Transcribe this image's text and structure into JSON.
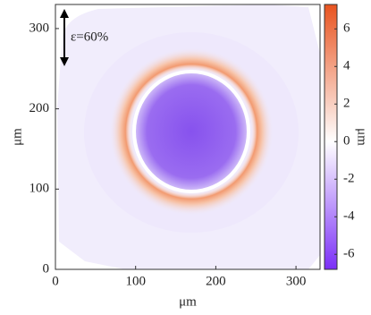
{
  "chart_data": {
    "type": "heatmap",
    "x_label": "μm",
    "y_label": "μm",
    "colorbar_label": "μm",
    "annotation": "ε=60%",
    "xlim": [
      0,
      330
    ],
    "ylim": [
      0,
      330
    ],
    "xticks": [
      0,
      100,
      200,
      300
    ],
    "yticks": [
      0,
      100,
      200,
      300
    ],
    "clim": [
      -6.8,
      7.3
    ],
    "cticks": [
      -6,
      -4,
      -2,
      0,
      2,
      4,
      6
    ],
    "colormap": [
      "#7b2ff7",
      "#ffffff",
      "#e8531f"
    ]
  }
}
